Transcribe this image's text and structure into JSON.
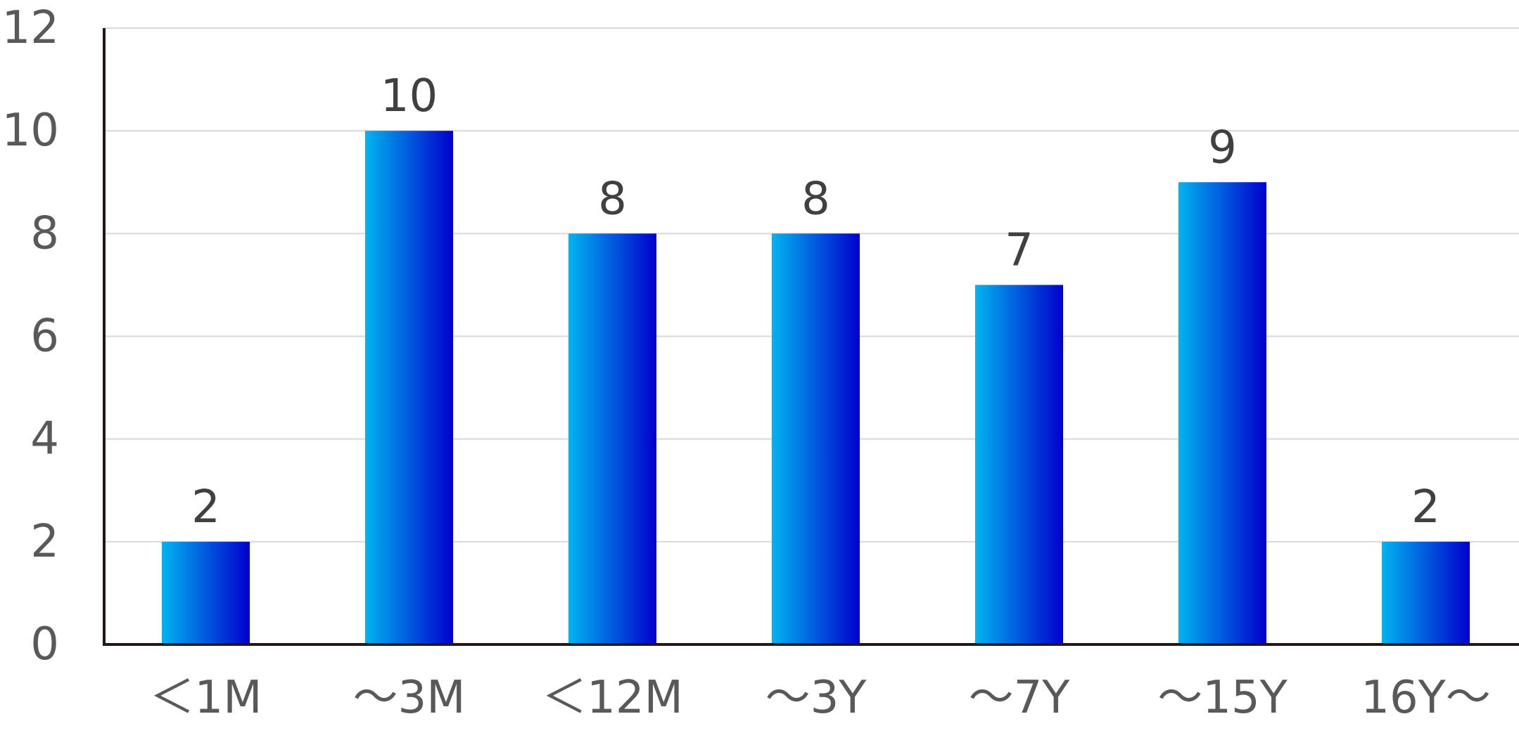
{
  "chart_data": {
    "type": "bar",
    "categories": [
      "＜1M",
      "～3M",
      "＜12M",
      "～3Y",
      "～7Y",
      "～15Y",
      "16Y～"
    ],
    "values": [
      2,
      10,
      8,
      8,
      7,
      9,
      2
    ],
    "ylim": [
      0,
      12
    ],
    "yticks": [
      0,
      2,
      4,
      6,
      8,
      10,
      12
    ],
    "grid": true,
    "data_labels": true,
    "legend": "none",
    "colors": {
      "bar_gradient_start": "#00b4f0",
      "bar_gradient_end": "#0000cc",
      "gridline": "#d9d9d9",
      "axis": "#231816",
      "tick_text": "#595959",
      "label_text": "#404040"
    }
  }
}
